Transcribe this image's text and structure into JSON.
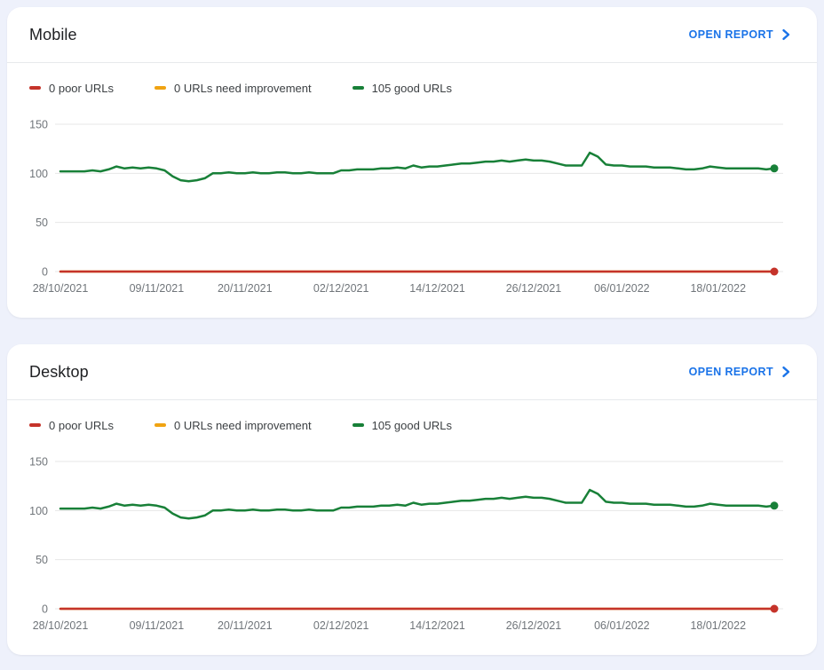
{
  "page": {
    "background": "#eef1fb"
  },
  "colors": {
    "poor": "#c5332a",
    "needs_improvement": "#f0a312",
    "good": "#188038",
    "link": "#1a73e8"
  },
  "cards": [
    {
      "title": "Mobile",
      "open_report_label": "OPEN REPORT",
      "legend": [
        {
          "label": "0 poor URLs",
          "color": "#c5332a"
        },
        {
          "label": "0 URLs need improvement",
          "color": "#f0a312"
        },
        {
          "label": "105 good URLs",
          "color": "#188038"
        }
      ]
    },
    {
      "title": "Desktop",
      "open_report_label": "OPEN REPORT",
      "legend": [
        {
          "label": "0 poor URLs",
          "color": "#c5332a"
        },
        {
          "label": "0 URLs need improvement",
          "color": "#f0a312"
        },
        {
          "label": "105 good URLs",
          "color": "#188038"
        }
      ]
    }
  ],
  "chart_data": [
    {
      "type": "line",
      "title": "Mobile",
      "ylim": [
        0,
        150
      ],
      "y_ticks": [
        0,
        50,
        100,
        150
      ],
      "grid": true,
      "n_points": 90,
      "x_tick_days": [
        0,
        12,
        23,
        35,
        47,
        59,
        70,
        82
      ],
      "x_tick_labels": [
        "28/10/2021",
        "09/11/2021",
        "20/11/2021",
        "02/12/2021",
        "14/12/2021",
        "26/12/2021",
        "06/01/2022",
        "18/01/2022"
      ],
      "series": [
        {
          "name": "0 URLs need improvement",
          "color": "#f0a312",
          "constant_value": 0,
          "end_dot": false
        },
        {
          "name": "0 poor URLs",
          "color": "#c5332a",
          "constant_value": 0,
          "end_dot": true
        },
        {
          "name": "105 good URLs",
          "color": "#188038",
          "end_dot": true,
          "values": [
            102,
            102,
            102,
            102,
            103,
            102,
            104,
            107,
            105,
            106,
            105,
            106,
            105,
            103,
            97,
            93,
            92,
            93,
            95,
            100,
            100,
            101,
            100,
            100,
            101,
            100,
            100,
            101,
            101,
            100,
            100,
            101,
            100,
            100,
            100,
            103,
            103,
            104,
            104,
            104,
            105,
            105,
            106,
            105,
            108,
            106,
            107,
            107,
            108,
            109,
            110,
            110,
            111,
            112,
            112,
            113,
            112,
            113,
            114,
            113,
            113,
            112,
            110,
            108,
            108,
            108,
            121,
            117,
            109,
            108,
            108,
            107,
            107,
            107,
            106,
            106,
            106,
            105,
            104,
            104,
            105,
            107,
            106,
            105,
            105,
            105,
            105,
            105,
            104,
            105
          ]
        }
      ]
    },
    {
      "type": "line",
      "title": "Desktop",
      "ylim": [
        0,
        150
      ],
      "y_ticks": [
        0,
        50,
        100,
        150
      ],
      "grid": true,
      "n_points": 90,
      "x_tick_days": [
        0,
        12,
        23,
        35,
        47,
        59,
        70,
        82
      ],
      "x_tick_labels": [
        "28/10/2021",
        "09/11/2021",
        "20/11/2021",
        "02/12/2021",
        "14/12/2021",
        "26/12/2021",
        "06/01/2022",
        "18/01/2022"
      ],
      "series": [
        {
          "name": "0 URLs need improvement",
          "color": "#f0a312",
          "constant_value": 0,
          "end_dot": false
        },
        {
          "name": "0 poor URLs",
          "color": "#c5332a",
          "constant_value": 0,
          "end_dot": true
        },
        {
          "name": "105 good URLs",
          "color": "#188038",
          "end_dot": true,
          "values": [
            102,
            102,
            102,
            102,
            103,
            102,
            104,
            107,
            105,
            106,
            105,
            106,
            105,
            103,
            97,
            93,
            92,
            93,
            95,
            100,
            100,
            101,
            100,
            100,
            101,
            100,
            100,
            101,
            101,
            100,
            100,
            101,
            100,
            100,
            100,
            103,
            103,
            104,
            104,
            104,
            105,
            105,
            106,
            105,
            108,
            106,
            107,
            107,
            108,
            109,
            110,
            110,
            111,
            112,
            112,
            113,
            112,
            113,
            114,
            113,
            113,
            112,
            110,
            108,
            108,
            108,
            121,
            117,
            109,
            108,
            108,
            107,
            107,
            107,
            106,
            106,
            106,
            105,
            104,
            104,
            105,
            107,
            106,
            105,
            105,
            105,
            105,
            105,
            104,
            105
          ]
        }
      ]
    }
  ]
}
